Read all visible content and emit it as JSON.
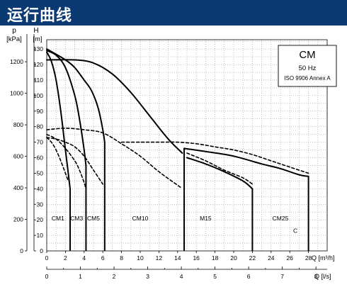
{
  "header": {
    "title": "运行曲线"
  },
  "chart_data": {
    "type": "line",
    "legend_box": {
      "title": "CM",
      "line1": "50 Hz",
      "line2": "ISO 9906 Annex A"
    },
    "left_axis": {
      "label": "p",
      "unit": "[kPa]",
      "ticks": [
        0,
        200,
        400,
        600,
        800,
        1000,
        1200
      ],
      "range": [
        0,
        1340
      ]
    },
    "right_axis": {
      "label": "H",
      "unit": "[m]",
      "ticks": [
        0,
        10,
        20,
        30,
        40,
        50,
        60,
        70,
        80,
        90,
        100,
        110,
        120,
        130
      ],
      "range": [
        0,
        136
      ]
    },
    "x_axis_flow_m3h": {
      "label": "Q [m³/h]",
      "ticks": [
        0,
        2,
        4,
        6,
        8,
        10,
        12,
        14,
        16,
        18,
        20,
        22,
        24,
        26,
        28
      ],
      "range": [
        0,
        30
      ]
    },
    "x_axis_flow_ls": {
      "label": "Q [l/s]",
      "ticks": [
        0,
        1,
        2,
        3,
        4,
        5,
        6,
        7,
        8
      ],
      "range": [
        0,
        8.333
      ]
    },
    "grid": true,
    "model_labels": [
      {
        "text": "CM1",
        "q": 1.2
      },
      {
        "text": "CM3",
        "q": 3.2
      },
      {
        "text": "CM5",
        "q": 5.0
      },
      {
        "text": "CM10",
        "q": 10.0
      },
      {
        "text": "M15",
        "q": 17.0
      },
      {
        "text": "CM25",
        "q": 25.0
      }
    ],
    "curve_letter": {
      "text": "C",
      "q": 26.6,
      "h": 13
    },
    "series": [
      {
        "name": "CM1",
        "style": "solid",
        "x": [
          0,
          0.5,
          1,
          1.5,
          2,
          2.3,
          2.5
        ],
        "y": [
          128,
          122,
          110,
          90,
          65,
          50,
          40
        ]
      },
      {
        "name": "CM1",
        "style": "dashed",
        "x": [
          0,
          0.5,
          1,
          1.5,
          2,
          2.3
        ],
        "y": [
          73,
          70,
          65,
          58,
          50,
          45
        ]
      },
      {
        "name": "CM3",
        "style": "solid",
        "x": [
          0,
          1,
          2,
          3,
          3.5,
          4,
          4.2
        ],
        "y": [
          129,
          126,
          118,
          100,
          85,
          65,
          55
        ]
      },
      {
        "name": "CM3",
        "style": "dashed",
        "x": [
          0,
          1,
          2,
          3,
          3.5,
          4,
          4.2
        ],
        "y": [
          75,
          72,
          66,
          58,
          52,
          44,
          40
        ]
      },
      {
        "name": "CM5",
        "style": "solid",
        "x": [
          0,
          2,
          3,
          4,
          4.8,
          5.5,
          6,
          6.2
        ],
        "y": [
          130,
          123,
          118,
          110,
          103,
          92,
          78,
          70
        ]
      },
      {
        "name": "CM5",
        "style": "dashed",
        "x": [
          0,
          1,
          2,
          3,
          4,
          5,
          6
        ],
        "y": [
          73,
          72,
          70,
          67,
          61,
          52,
          43
        ]
      },
      {
        "name": "CM10",
        "style": "solid",
        "x": [
          0,
          3,
          5,
          7,
          9,
          11,
          13,
          14.5
        ],
        "y": [
          123,
          123,
          121,
          114,
          102,
          87,
          72,
          63
        ]
      },
      {
        "name": "CM10",
        "style": "dashed",
        "x": [
          0,
          2,
          4,
          6,
          8,
          10,
          12,
          14.3
        ],
        "y": [
          78,
          79,
          78,
          76,
          69,
          61,
          51,
          41
        ]
      },
      {
        "name": "M15",
        "style": "solid",
        "x": [
          15,
          17,
          19,
          21,
          22
        ],
        "y": [
          60,
          56,
          51,
          45,
          40
        ]
      },
      {
        "name": "M15",
        "style": "dashed",
        "x": [
          15,
          17,
          19,
          21,
          22
        ],
        "y": [
          63,
          58,
          52,
          47,
          43
        ]
      },
      {
        "name": "CM25",
        "style": "solid",
        "x": [
          14.7,
          17,
          20,
          23,
          25,
          27,
          28
        ],
        "y": [
          66,
          64,
          61,
          56,
          53,
          49,
          48
        ]
      },
      {
        "name": "CM25",
        "style": "dashed",
        "x": [
          8,
          10,
          12,
          14,
          16,
          18,
          20,
          22,
          24,
          26,
          28
        ],
        "y": [
          70,
          70,
          70,
          70,
          69,
          67,
          65,
          62,
          58,
          54,
          50
        ]
      }
    ],
    "verticals": [
      {
        "q": 2.5,
        "from": 0,
        "to": 40
      },
      {
        "q": 4.2,
        "from": 0,
        "to": 55
      },
      {
        "q": 6.2,
        "from": 0,
        "to": 70
      },
      {
        "q": 14.7,
        "from": 0,
        "to": 66
      },
      {
        "q": 22.0,
        "from": 0,
        "to": 40
      },
      {
        "q": 28.0,
        "from": 0,
        "to": 48
      }
    ]
  }
}
